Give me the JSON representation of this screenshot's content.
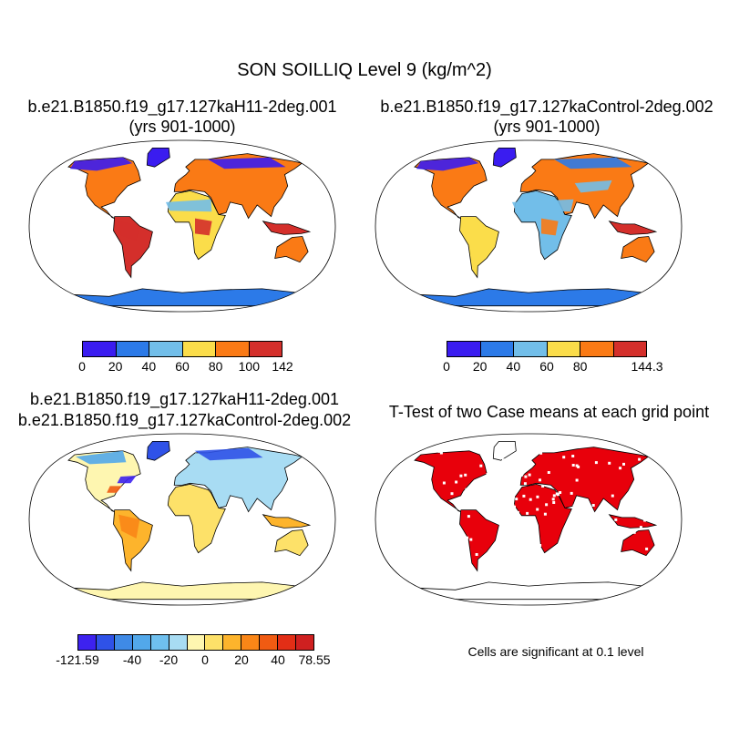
{
  "title": "SON SOILLIQ Level 9 (kg/m^2)",
  "panels": {
    "top_left": {
      "line1": "b.e21.B1850.f19_g17.127kaH11-2deg.001",
      "line2": "(yrs 901-1000)"
    },
    "top_right": {
      "line1": "b.e21.B1850.f19_g17.127kaControl-2deg.002",
      "line2": "(yrs 901-1000)"
    },
    "bottom_left": {
      "line1": "b.e21.B1850.f19_g17.127kaH11-2deg.001",
      "line2": "b.e21.B1850.f19_g17.127kaControl-2deg.002"
    },
    "bottom_right": {
      "line1": "T-Test of two Case means at each grid point"
    }
  },
  "colorbars": {
    "top_left": {
      "colors": [
        "#3a1cf0",
        "#2c7ae8",
        "#72bee9",
        "#fbdd4a",
        "#fa7a15",
        "#d42f2b"
      ],
      "labels": [
        "0",
        "20",
        "40",
        "60",
        "80",
        "100",
        "142"
      ]
    },
    "top_right": {
      "colors": [
        "#3a1cf0",
        "#2c7ae8",
        "#72bee9",
        "#fbdd4a",
        "#fa7a15",
        "#d42f2b"
      ],
      "labels": [
        "0",
        "20",
        "40",
        "60",
        "80",
        "144.3"
      ]
    },
    "bottom_left": {
      "colors": [
        "#3d22ef",
        "#2f52e8",
        "#3f8ae6",
        "#52a8ea",
        "#6fc0ef",
        "#a8dcf3",
        "#fef6b0",
        "#fde169",
        "#fdb42c",
        "#fa8617",
        "#f05b12",
        "#e22e16",
        "#cf2020"
      ],
      "labels": [
        "-121.59",
        "-40",
        "-20",
        "0",
        "20",
        "40",
        "78.55"
      ]
    }
  },
  "significance_note": "Cells are significant at 0.1 level",
  "colors": {
    "significant": "#e8000b",
    "outline": "#000000"
  }
}
